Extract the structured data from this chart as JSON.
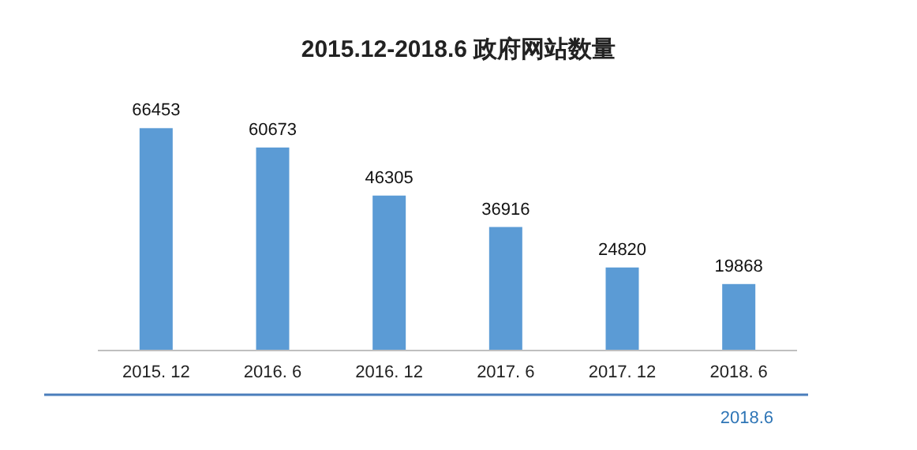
{
  "chart_data": {
    "type": "bar",
    "title": "2015.12-2018.6 政府网站数量",
    "categories": [
      "2015. 12",
      "2016. 6",
      "2016. 12",
      "2017. 6",
      "2017. 12",
      "2018. 6"
    ],
    "values": [
      66453,
      60673,
      46305,
      36916,
      24820,
      19868
    ],
    "color": "#5b9bd5",
    "data_labels": true,
    "annotations": [
      "2018.6"
    ]
  }
}
